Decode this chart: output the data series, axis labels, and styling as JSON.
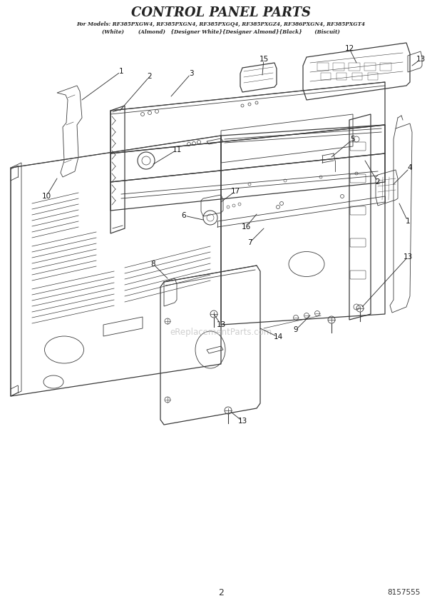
{
  "title": "CONTROL PANEL PARTS",
  "subtitle_line1": "For Models: RF385PXGW4, RF385PXGN4, RF385PXGQ4, RF385PXGZ4, RF386PXGN4, RF385PXGT4",
  "subtitle_line2": "(White)        (Almond)   {Designer White}{Designer Almond}{Black}       (Biscuit)",
  "page_number": "2",
  "part_number": "8157555",
  "background_color": "#ffffff",
  "line_color": "#3a3a3a",
  "text_color": "#222222",
  "watermark_text": "eReplacementParts.com",
  "watermark_color": "#bbbbbb"
}
